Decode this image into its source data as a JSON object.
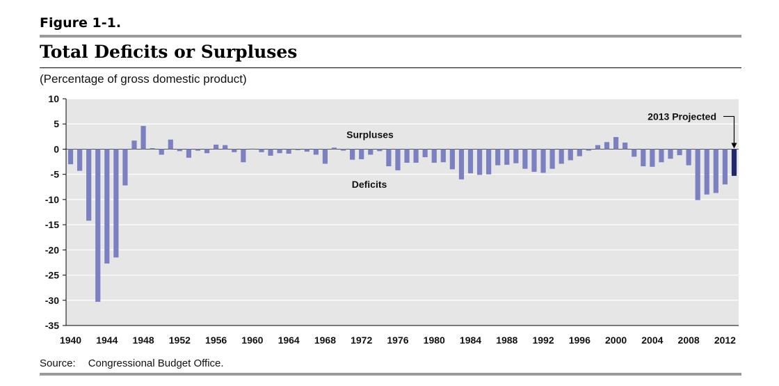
{
  "figure_label": "Figure 1-1.",
  "source": {
    "label": "Source:",
    "text": "Congressional Budget Office."
  },
  "colors": {
    "bar": "#7b80c0",
    "projected_bar": "#1f2a6e",
    "plot_bg": "#e6e6e6",
    "grid": "#ffffff"
  },
  "chart_data": {
    "type": "bar",
    "title": "Total Deficits or Surpluses",
    "subtitle": "(Percentage of gross domestic product)",
    "xlabel": "",
    "ylabel": "",
    "ylim": [
      -35,
      10
    ],
    "y_ticks": [
      10,
      5,
      0,
      -5,
      -10,
      -15,
      -20,
      -25,
      -30,
      -35
    ],
    "x_tick_labels": [
      "1940",
      "1944",
      "1948",
      "1952",
      "1956",
      "1960",
      "1964",
      "1968",
      "1972",
      "1976",
      "1980",
      "1984",
      "1988",
      "1992",
      "1996",
      "2000",
      "2004",
      "2008",
      "2012"
    ],
    "grid": true,
    "annotations": {
      "surpluses": "Surpluses",
      "deficits": "Deficits",
      "projected": "2013 Projected"
    },
    "categories": [
      1940,
      1941,
      1942,
      1943,
      1944,
      1945,
      1946,
      1947,
      1948,
      1949,
      1950,
      1951,
      1952,
      1953,
      1954,
      1955,
      1956,
      1957,
      1958,
      1959,
      1960,
      1961,
      1962,
      1963,
      1964,
      1965,
      1966,
      1967,
      1968,
      1969,
      1970,
      1971,
      1972,
      1973,
      1974,
      1975,
      1976,
      1977,
      1978,
      1979,
      1980,
      1981,
      1982,
      1983,
      1984,
      1985,
      1986,
      1987,
      1988,
      1989,
      1990,
      1991,
      1992,
      1993,
      1994,
      1995,
      1996,
      1997,
      1998,
      1999,
      2000,
      2001,
      2002,
      2003,
      2004,
      2005,
      2006,
      2007,
      2008,
      2009,
      2010,
      2011,
      2012,
      2013
    ],
    "values": [
      -3.0,
      -4.3,
      -14.2,
      -30.3,
      -22.7,
      -21.5,
      -7.2,
      1.7,
      4.6,
      0.2,
      -1.1,
      1.9,
      -0.4,
      -1.7,
      -0.3,
      -0.8,
      0.9,
      0.8,
      -0.6,
      -2.6,
      0.1,
      -0.6,
      -1.3,
      -0.8,
      -0.9,
      -0.2,
      -0.5,
      -1.1,
      -2.9,
      0.3,
      -0.3,
      -2.1,
      -2.0,
      -1.1,
      -0.4,
      -3.4,
      -4.2,
      -2.7,
      -2.7,
      -1.6,
      -2.7,
      -2.6,
      -4.0,
      -6.0,
      -4.8,
      -5.1,
      -5.0,
      -3.2,
      -3.1,
      -2.8,
      -3.9,
      -4.5,
      -4.7,
      -3.9,
      -2.9,
      -2.2,
      -1.4,
      -0.3,
      0.8,
      1.4,
      2.4,
      1.3,
      -1.5,
      -3.4,
      -3.5,
      -2.6,
      -1.9,
      -1.2,
      -3.2,
      -10.1,
      -9.0,
      -8.7,
      -7.0,
      -5.3
    ],
    "projected_index": 73
  }
}
